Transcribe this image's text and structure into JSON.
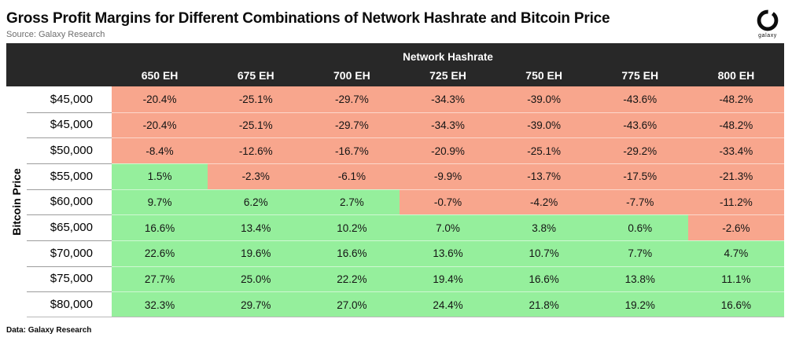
{
  "header": {
    "source": "Source: Galaxy Research",
    "logo_text": "galaxy"
  },
  "chart_data": {
    "type": "heatmap",
    "title": "Gross Profit Margins for Different Combinations of Network Hashrate and Bitcoin Price",
    "xlabel": "Network Hashrate",
    "ylabel": "Bitcoin Price",
    "x_categories": [
      "650 EH",
      "675 EH",
      "700 EH",
      "725 EH",
      "750 EH",
      "775 EH",
      "800 EH"
    ],
    "y_categories": [
      "$45,000",
      "$45,000",
      "$50,000",
      "$55,000",
      "$60,000",
      "$65,000",
      "$70,000",
      "$75,000",
      "$80,000"
    ],
    "values_pct": [
      [
        -20.4,
        -25.1,
        -29.7,
        -34.3,
        -39.0,
        -43.6,
        -48.2
      ],
      [
        -20.4,
        -25.1,
        -29.7,
        -34.3,
        -39.0,
        -43.6,
        -48.2
      ],
      [
        -8.4,
        -12.6,
        -16.7,
        -20.9,
        -25.1,
        -29.2,
        -33.4
      ],
      [
        1.5,
        -2.3,
        -6.1,
        -9.9,
        -13.7,
        -17.5,
        -21.3
      ],
      [
        9.7,
        6.2,
        2.7,
        -0.7,
        -4.2,
        -7.7,
        -11.2
      ],
      [
        16.6,
        13.4,
        10.2,
        7.0,
        3.8,
        0.6,
        -2.6
      ],
      [
        22.6,
        19.6,
        16.6,
        13.6,
        10.7,
        7.7,
        4.7
      ],
      [
        27.7,
        25.0,
        22.2,
        19.4,
        16.6,
        13.8,
        11.1
      ],
      [
        32.3,
        29.7,
        27.0,
        24.4,
        21.8,
        19.2,
        16.6
      ]
    ],
    "value_format": "percent_1dp",
    "legend": "none",
    "colors": {
      "negative_bg": "#F8A68D",
      "positive_bg": "#95EF9C",
      "header_bg": "#282828"
    }
  },
  "footer": {
    "caption": "Data: Galaxy Research"
  }
}
